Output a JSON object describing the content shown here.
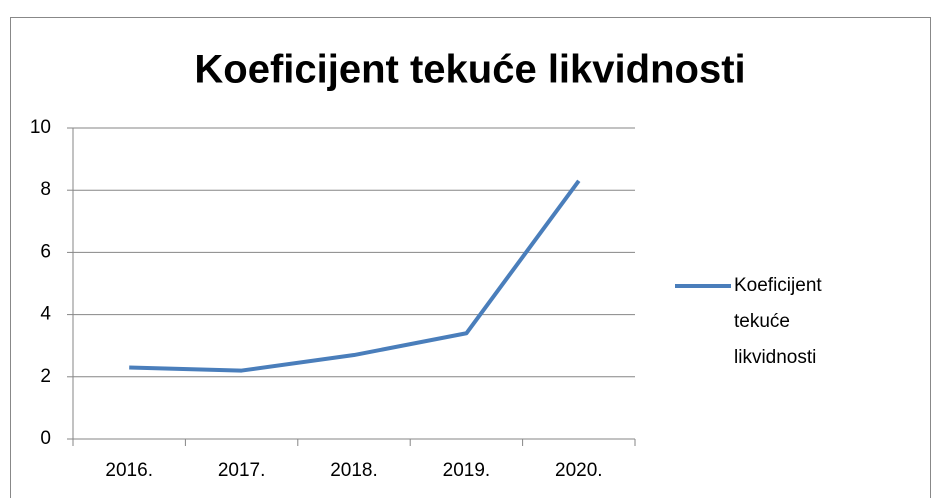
{
  "chart_data": {
    "type": "line",
    "title": "Koeficijent tekuće likvidnosti",
    "categories": [
      "2016.",
      "2017.",
      "2018.",
      "2019.",
      "2020."
    ],
    "series": [
      {
        "name": "Koeficijent tekuće likvidnosti",
        "color": "#4a7ebb",
        "values": [
          2.3,
          2.2,
          2.7,
          3.4,
          8.3
        ]
      }
    ],
    "ylim": [
      0,
      10
    ],
    "yticks": [
      0,
      2,
      4,
      6,
      8,
      10
    ],
    "grid": true,
    "legend": "right"
  }
}
